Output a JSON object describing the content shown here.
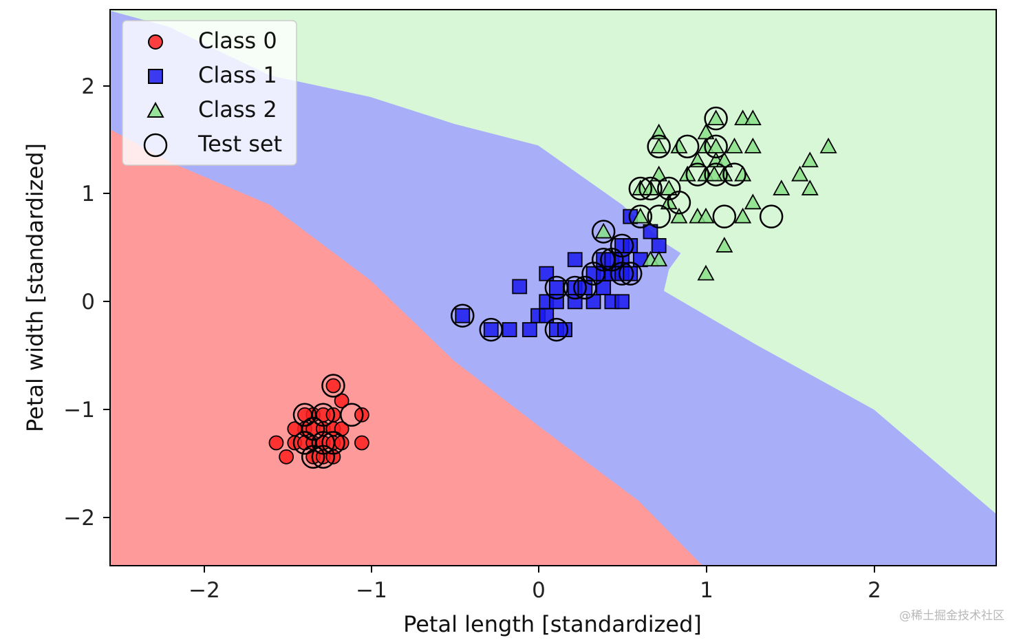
{
  "chart_data": {
    "type": "scatter",
    "title": "",
    "xlabel": "Petal length [standardized]",
    "ylabel": "Petal width [standardized]",
    "xlim": [
      -2.55,
      2.73
    ],
    "ylim": [
      -2.45,
      2.71
    ],
    "xticks": [
      -2,
      -1,
      0,
      1,
      2
    ],
    "yticks": [
      -2,
      -1,
      0,
      1,
      2
    ],
    "xtick_labels": [
      "−2",
      "−1",
      "0",
      "1",
      "2"
    ],
    "ytick_labels": [
      "−2",
      "−1",
      "0",
      "1",
      "2"
    ],
    "grid": false,
    "legend_position": "top-left",
    "decision_regions": [
      {
        "name": "Class 0 region",
        "color": "#ff9a9a",
        "boundary": [
          [
            -2.55,
            1.6
          ],
          [
            -2.2,
            1.3
          ],
          [
            -1.6,
            0.9
          ],
          [
            -1.0,
            0.2
          ],
          [
            -0.5,
            -0.55
          ],
          [
            0.0,
            -1.15
          ],
          [
            0.6,
            -1.85
          ],
          [
            0.98,
            -2.45
          ]
        ]
      },
      {
        "name": "Class 1 region",
        "color": "#a9aef9",
        "boundary": [
          [
            -2.55,
            2.7
          ],
          [
            -2.2,
            2.55
          ],
          [
            -1.6,
            2.1
          ],
          [
            -1.0,
            1.9
          ],
          [
            -0.5,
            1.65
          ],
          [
            0.0,
            1.45
          ],
          [
            0.5,
            0.9
          ],
          [
            0.75,
            0.55
          ],
          [
            0.85,
            0.45
          ],
          [
            0.78,
            0.3
          ],
          [
            0.75,
            0.1
          ],
          [
            1.3,
            -0.4
          ],
          [
            2.0,
            -1.0
          ],
          [
            2.73,
            -1.97
          ]
        ]
      },
      {
        "name": "Class 2 region",
        "color": "#d7f7d7",
        "boundary": []
      }
    ],
    "series": [
      {
        "name": "Class 0",
        "marker": "circle",
        "color": "#ff2020",
        "points": [
          [
            -1.56,
            -1.31
          ],
          [
            -1.5,
            -1.44
          ],
          [
            -1.45,
            -1.31
          ],
          [
            -1.39,
            -1.18
          ],
          [
            -1.39,
            -1.31
          ],
          [
            -1.34,
            -1.05
          ],
          [
            -1.34,
            -1.18
          ],
          [
            -1.34,
            -1.31
          ],
          [
            -1.34,
            -1.44
          ],
          [
            -1.28,
            -1.05
          ],
          [
            -1.28,
            -1.18
          ],
          [
            -1.28,
            -1.31
          ],
          [
            -1.28,
            -1.44
          ],
          [
            -1.22,
            -1.05
          ],
          [
            -1.22,
            -1.18
          ],
          [
            -1.22,
            -1.31
          ],
          [
            -1.22,
            -0.78
          ],
          [
            -1.17,
            -0.92
          ],
          [
            -1.17,
            -1.18
          ],
          [
            -1.17,
            -1.31
          ],
          [
            -1.05,
            -1.05
          ],
          [
            -1.05,
            -1.31
          ],
          [
            -1.39,
            -1.05
          ],
          [
            -1.22,
            -1.44
          ],
          [
            -1.45,
            -1.18
          ]
        ]
      },
      {
        "name": "Class 1",
        "marker": "square",
        "color": "#1a1aee",
        "points": [
          [
            -0.45,
            -0.13
          ],
          [
            -0.28,
            -0.26
          ],
          [
            -0.17,
            -0.26
          ],
          [
            -0.05,
            -0.26
          ],
          [
            -0.11,
            0.14
          ],
          [
            0.0,
            -0.13
          ],
          [
            0.05,
            0.0
          ],
          [
            0.05,
            -0.13
          ],
          [
            0.05,
            0.26
          ],
          [
            0.11,
            0.0
          ],
          [
            0.11,
            0.13
          ],
          [
            0.11,
            -0.26
          ],
          [
            0.16,
            -0.26
          ],
          [
            0.22,
            0.13
          ],
          [
            0.22,
            0.0
          ],
          [
            0.22,
            0.39
          ],
          [
            0.28,
            0.13
          ],
          [
            0.33,
            0.26
          ],
          [
            0.33,
            0.0
          ],
          [
            0.39,
            0.13
          ],
          [
            0.39,
            0.26
          ],
          [
            0.39,
            0.39
          ],
          [
            0.44,
            0.39
          ],
          [
            0.44,
            0.26
          ],
          [
            0.44,
            0.0
          ],
          [
            0.5,
            0.39
          ],
          [
            0.5,
            0.26
          ],
          [
            0.5,
            0.52
          ],
          [
            0.5,
            0.0
          ],
          [
            0.55,
            0.26
          ],
          [
            0.55,
            0.52
          ],
          [
            0.61,
            0.39
          ],
          [
            0.67,
            0.65
          ],
          [
            0.72,
            0.52
          ],
          [
            0.55,
            0.79
          ]
        ]
      },
      {
        "name": "Class 2",
        "marker": "triangle",
        "color": "#88e088",
        "points": [
          [
            0.39,
            0.65
          ],
          [
            0.67,
            0.39
          ],
          [
            0.72,
            0.39
          ],
          [
            0.61,
            0.79
          ],
          [
            0.61,
            1.05
          ],
          [
            0.67,
            1.05
          ],
          [
            0.72,
            1.18
          ],
          [
            0.72,
            1.44
          ],
          [
            0.72,
            1.57
          ],
          [
            0.78,
            1.05
          ],
          [
            0.84,
            1.44
          ],
          [
            0.89,
            1.18
          ],
          [
            0.95,
            1.31
          ],
          [
            1.0,
            1.44
          ],
          [
            1.0,
            1.57
          ],
          [
            1.0,
            0.26
          ],
          [
            1.0,
            1.18
          ],
          [
            1.06,
            1.31
          ],
          [
            1.06,
            1.44
          ],
          [
            1.06,
            1.7
          ],
          [
            1.11,
            0.52
          ],
          [
            1.11,
            1.18
          ],
          [
            1.11,
            1.31
          ],
          [
            1.17,
            1.44
          ],
          [
            1.22,
            1.7
          ],
          [
            1.28,
            1.7
          ],
          [
            1.28,
            1.44
          ],
          [
            1.28,
            0.92
          ],
          [
            1.22,
            0.79
          ],
          [
            1.45,
            1.05
          ],
          [
            1.56,
            1.18
          ],
          [
            1.62,
            1.05
          ],
          [
            1.62,
            1.31
          ],
          [
            1.73,
            1.44
          ],
          [
            0.95,
            0.79
          ],
          [
            1.0,
            0.79
          ],
          [
            0.78,
            0.92
          ],
          [
            1.05,
            1.18
          ],
          [
            1.22,
            1.18
          ],
          [
            0.84,
            0.79
          ]
        ]
      },
      {
        "name": "Test set",
        "marker": "ring",
        "color": "#000000",
        "points": [
          [
            -1.22,
            -0.78
          ],
          [
            -1.39,
            -1.05
          ],
          [
            -1.28,
            -1.05
          ],
          [
            -1.11,
            -1.05
          ],
          [
            -1.34,
            -1.18
          ],
          [
            -1.28,
            -1.31
          ],
          [
            -1.22,
            -1.31
          ],
          [
            -1.34,
            -1.44
          ],
          [
            -1.28,
            -1.44
          ],
          [
            -1.39,
            -1.31
          ],
          [
            -0.45,
            -0.13
          ],
          [
            -0.28,
            -0.26
          ],
          [
            0.11,
            -0.26
          ],
          [
            0.11,
            0.13
          ],
          [
            0.22,
            0.13
          ],
          [
            0.28,
            0.13
          ],
          [
            0.33,
            0.26
          ],
          [
            0.39,
            0.39
          ],
          [
            0.44,
            0.39
          ],
          [
            0.5,
            0.26
          ],
          [
            0.55,
            0.26
          ],
          [
            0.5,
            0.52
          ],
          [
            0.39,
            0.65
          ],
          [
            0.61,
            0.79
          ],
          [
            0.72,
            0.79
          ],
          [
            0.61,
            1.05
          ],
          [
            0.67,
            1.05
          ],
          [
            0.78,
            1.05
          ],
          [
            0.84,
            0.92
          ],
          [
            0.72,
            1.44
          ],
          [
            0.89,
            1.44
          ],
          [
            1.06,
            1.44
          ],
          [
            0.95,
            1.18
          ],
          [
            1.06,
            1.18
          ],
          [
            1.17,
            1.18
          ],
          [
            1.06,
            1.7
          ],
          [
            1.11,
            0.79
          ],
          [
            1.39,
            0.79
          ]
        ]
      }
    ]
  },
  "legend": {
    "entries": [
      {
        "label": "Class 0",
        "marker": "circle"
      },
      {
        "label": "Class 1",
        "marker": "square"
      },
      {
        "label": "Class 2",
        "marker": "triangle"
      },
      {
        "label": "Test set",
        "marker": "ring"
      }
    ]
  },
  "watermark": "@稀土掘金技术社区",
  "colors": {
    "class0_region": "#ff9a9a",
    "class1_region": "#a9aef9",
    "class2_region": "#d7f7d7",
    "class0": "#ff2020",
    "class1": "#1a1aee",
    "class2": "#88e088"
  }
}
